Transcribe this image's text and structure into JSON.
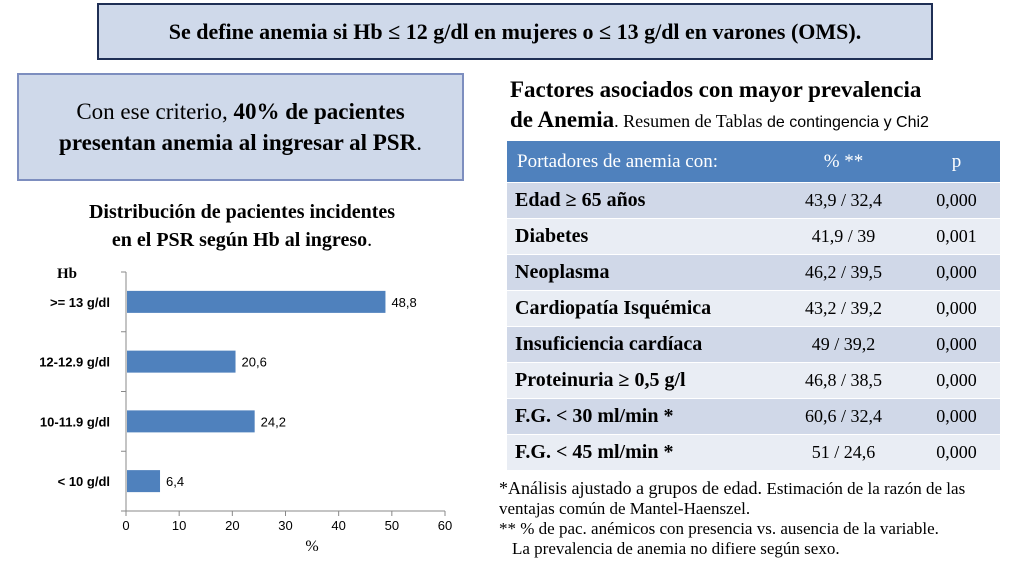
{
  "banner": {
    "text": "Se define anemia si Hb ≤ 12 g/dl en mujeres o ≤ 13 g/dl en varones (OMS)."
  },
  "criteria": {
    "prefix": "Con ese criterio, ",
    "percent": "40%",
    "middle": " de pacientes",
    "line2": "presentan anemia al ingresar al PSR",
    "suffix": "."
  },
  "chart_heading": {
    "line1": "Distribución de pacientes incidentes",
    "line2": "en el PSR según Hb al ingreso",
    "suffix": "."
  },
  "chart_data": {
    "type": "bar",
    "orientation": "horizontal",
    "categories": [
      ">= 13 g/dl",
      "12-12.9 g/dl",
      "10-11.9 g/dl",
      "< 10 g/dl"
    ],
    "values": [
      48.8,
      20.6,
      24.2,
      6.4
    ],
    "value_labels": [
      "48,8",
      "20,6",
      "24,2",
      "6,4"
    ],
    "xlim": [
      0,
      60
    ],
    "xticks": [
      0,
      10,
      20,
      30,
      40,
      50,
      60
    ],
    "xlabel": "%",
    "ylabel": "Hb",
    "bar_color": "#4f81bd",
    "grid": false
  },
  "factors": {
    "title_line1": "Factores asociados con mayor prevalencia",
    "title_line2_bold": "de Anemia",
    "title_line2_rest": ". Resumen de Tablas ",
    "title_line2_sans": "de contingencia y Chi2",
    "columns": [
      "Portadores de anemia con:",
      "%   **",
      "p"
    ],
    "rows": [
      {
        "factor": "Edad ≥ 65 años",
        "pct": "43,9   /   32,4",
        "p": "0,000"
      },
      {
        "factor": "Diabetes",
        "pct": "41,9   /   39",
        "p": "0,001"
      },
      {
        "factor": "Neoplasma",
        "pct": "46,2   /   39,5",
        "p": "0,000"
      },
      {
        "factor": "Cardiopatía Isquémica",
        "pct": "43,2   /   39,2",
        "p": "0,000"
      },
      {
        "factor": "Insuficiencia cardíaca",
        "pct": "49      /   39,2",
        "p": "0,000"
      },
      {
        "factor": "Proteinuria ≥ 0,5 g/l",
        "pct": "46,8   /   38,5",
        "p": "0,000"
      },
      {
        "factor": "F.G. < 30 ml/min   *",
        "pct": "60,6   /   32,4",
        "p": "0,000"
      },
      {
        "factor": "F.G. < 45 ml/min   *",
        "pct": "51      /   24,6",
        "p": "0,000"
      }
    ],
    "header_color": "#4f81bd",
    "row_color_a": "#d0d8e8",
    "row_color_b": "#e9edf4"
  },
  "notes": {
    "line1_a": "*Análisis ajustado a grupos de edad. ",
    "line1_b": "Estimación de la razón de las ventajas común de Mantel-Haenszel.",
    "line2": "** % de pac. anémicos con presencia vs. ausencia de la variable.",
    "line3": "La prevalencia de anemia no difiere según sexo."
  }
}
